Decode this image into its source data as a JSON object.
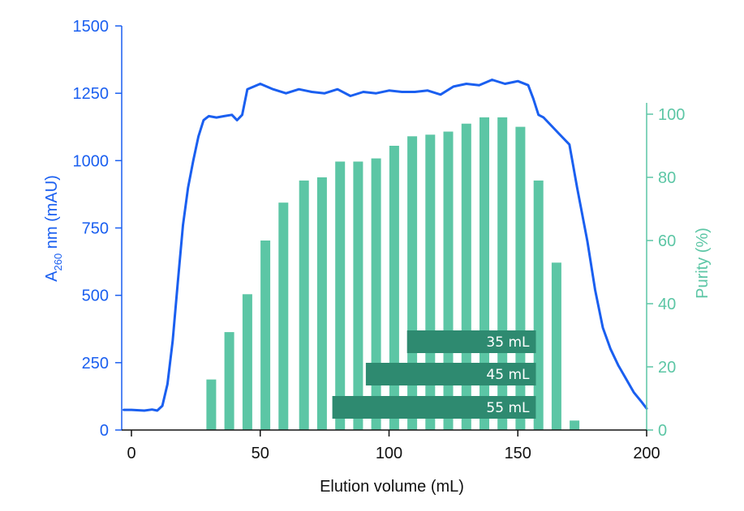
{
  "chart_data": {
    "type": "line+bar",
    "xlabel": "Elution volume (mL)",
    "xlim": [
      -3,
      200
    ],
    "x_ticks": [
      0,
      50,
      100,
      150,
      200
    ],
    "y_left": {
      "label_main": "A",
      "label_sub": "260",
      "label_rest": " nm (mAU)",
      "lim": [
        0,
        1500
      ],
      "ticks": [
        0,
        250,
        500,
        750,
        1000,
        1250,
        1500
      ],
      "color": "#1a5ff0"
    },
    "y_right": {
      "label": "Purity (%)",
      "lim": [
        0,
        104
      ],
      "ticks": [
        0,
        20,
        40,
        60,
        80,
        100
      ],
      "color": "#5cc6a5"
    },
    "series": [
      {
        "axis": "left",
        "kind": "line",
        "color": "#1a5ff0",
        "x": [
          -3,
          0,
          5,
          8,
          10,
          12,
          14,
          16,
          18,
          20,
          22,
          24,
          26,
          28,
          30,
          33,
          36,
          39,
          41,
          43,
          45,
          50,
          55,
          60,
          65,
          70,
          75,
          80,
          85,
          90,
          95,
          100,
          105,
          110,
          115,
          120,
          125,
          130,
          135,
          140,
          145,
          150,
          154,
          156,
          158,
          160,
          163,
          166,
          170,
          173,
          177,
          180,
          183,
          186,
          189,
          192,
          195,
          198,
          200
        ],
        "y": [
          75,
          75,
          72,
          76,
          72,
          90,
          170,
          330,
          550,
          760,
          900,
          1000,
          1090,
          1150,
          1165,
          1160,
          1165,
          1170,
          1150,
          1170,
          1265,
          1285,
          1265,
          1250,
          1265,
          1255,
          1250,
          1265,
          1240,
          1255,
          1250,
          1260,
          1255,
          1255,
          1260,
          1245,
          1275,
          1285,
          1280,
          1300,
          1285,
          1295,
          1280,
          1230,
          1170,
          1160,
          1130,
          1100,
          1060,
          900,
          700,
          520,
          380,
          300,
          240,
          190,
          140,
          105,
          80
        ]
      },
      {
        "axis": "right",
        "kind": "bar",
        "color": "#5cc6a5",
        "x": [
          31,
          38,
          45,
          52,
          59,
          67,
          74,
          81,
          88,
          95,
          102,
          109,
          116,
          123,
          130,
          137,
          144,
          151,
          158,
          165,
          172
        ],
        "y": [
          16,
          31,
          43,
          60,
          72,
          79,
          80,
          85,
          85,
          86,
          90,
          93,
          93.5,
          94.5,
          97,
          99,
          99,
          96,
          79,
          53,
          3
        ]
      }
    ],
    "fraction_bands": [
      {
        "label": "35 mL",
        "x_start": 107,
        "x_end": 157
      },
      {
        "label": "45 mL",
        "x_start": 91,
        "x_end": 157
      },
      {
        "label": "55 mL",
        "x_start": 78,
        "x_end": 157
      }
    ],
    "band_color": "#2e8a70"
  }
}
